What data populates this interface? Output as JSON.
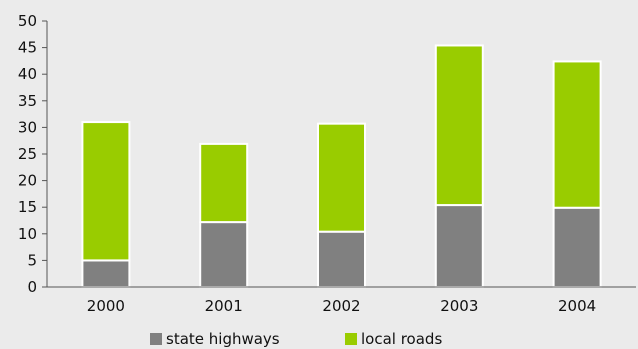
{
  "chart_data": {
    "type": "bar",
    "stacked": true,
    "categories": [
      "2000",
      "2001",
      "2002",
      "2003",
      "2004"
    ],
    "series": [
      {
        "name": "state highways",
        "values": [
          5,
          12.2,
          10.4,
          15.4,
          14.9
        ],
        "color": "#808080"
      },
      {
        "name": "local roads",
        "values": [
          26,
          14.7,
          20.3,
          30,
          27.5
        ],
        "color": "#99cc00"
      }
    ],
    "ylim": [
      0,
      50
    ],
    "yticks": [
      "0",
      "5",
      "10",
      "15",
      "20",
      "25",
      "30",
      "35",
      "40",
      "45",
      "50"
    ],
    "grid": false,
    "legend_position": "bottom",
    "background": "#ebebeb"
  }
}
